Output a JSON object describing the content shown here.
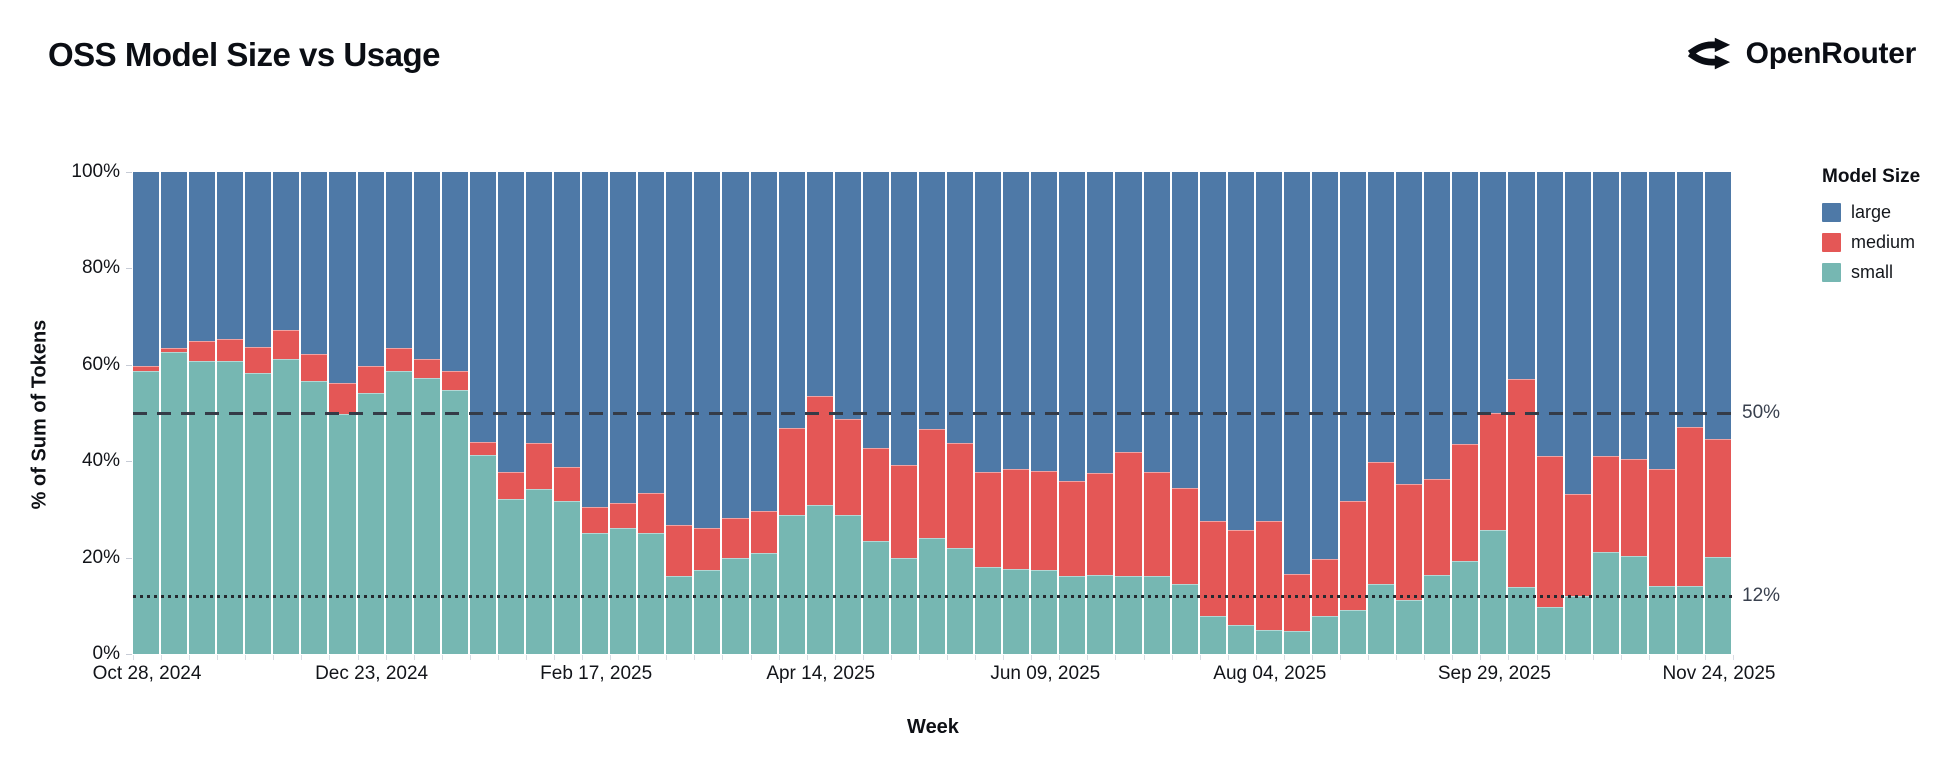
{
  "header": {
    "title": "OSS Model Size vs Usage",
    "brand": "OpenRouter"
  },
  "axes": {
    "y_title": "% of Sum of Tokens",
    "x_title": "Week",
    "y_ticks": [
      "100%",
      "80%",
      "60%",
      "40%",
      "20%",
      "0%"
    ],
    "x_tick_labels": [
      "Oct 28, 2024",
      "Dec 23, 2024",
      "Feb 17, 2025",
      "Apr 14, 2025",
      "Jun 09, 2025",
      "Aug 04, 2025",
      "Sep 29, 2025",
      "Nov 24, 2025"
    ],
    "x_tick_indices": [
      0,
      8,
      16,
      24,
      32,
      40,
      48,
      56
    ]
  },
  "legend": {
    "title": "Model Size",
    "items": [
      {
        "label": "large",
        "color": "#4e79a7"
      },
      {
        "label": "medium",
        "color": "#e45756"
      },
      {
        "label": "small",
        "color": "#76b7b2"
      }
    ]
  },
  "reference_lines": [
    {
      "value": 50,
      "label": "50%",
      "style": "dashed"
    },
    {
      "value": 12,
      "label": "12%",
      "style": "dotted"
    }
  ],
  "chart_data": {
    "type": "bar",
    "stacked": true,
    "normalized": true,
    "title": "OSS Model Size vs Usage",
    "xlabel": "Week",
    "ylabel": "% of Sum of Tokens",
    "ylim": [
      0,
      100
    ],
    "legend_position": "right",
    "grid": false,
    "x": [
      "Oct 28, 2024",
      "Nov 04, 2024",
      "Nov 11, 2024",
      "Nov 18, 2024",
      "Nov 25, 2024",
      "Dec 02, 2024",
      "Dec 09, 2024",
      "Dec 16, 2024",
      "Dec 23, 2024",
      "Dec 30, 2024",
      "Jan 06, 2025",
      "Jan 13, 2025",
      "Jan 20, 2025",
      "Jan 27, 2025",
      "Feb 03, 2025",
      "Feb 10, 2025",
      "Feb 17, 2025",
      "Feb 24, 2025",
      "Mar 03, 2025",
      "Mar 10, 2025",
      "Mar 17, 2025",
      "Mar 24, 2025",
      "Mar 31, 2025",
      "Apr 07, 2025",
      "Apr 14, 2025",
      "Apr 21, 2025",
      "Apr 28, 2025",
      "May 05, 2025",
      "May 12, 2025",
      "May 19, 2025",
      "May 26, 2025",
      "Jun 02, 2025",
      "Jun 09, 2025",
      "Jun 16, 2025",
      "Jun 23, 2025",
      "Jun 30, 2025",
      "Jul 07, 2025",
      "Jul 14, 2025",
      "Jul 21, 2025",
      "Jul 28, 2025",
      "Aug 04, 2025",
      "Aug 11, 2025",
      "Aug 18, 2025",
      "Aug 25, 2025",
      "Sep 01, 2025",
      "Sep 08, 2025",
      "Sep 15, 2025",
      "Sep 22, 2025",
      "Sep 29, 2025",
      "Oct 06, 2025",
      "Oct 13, 2025",
      "Oct 20, 2025",
      "Oct 27, 2025",
      "Nov 03, 2025",
      "Nov 10, 2025",
      "Nov 17, 2025",
      "Nov 24, 2025"
    ],
    "series": [
      {
        "name": "small",
        "color": "#76b7b2",
        "values": [
          58.5,
          62.5,
          60.5,
          60.5,
          58,
          61,
          56.5,
          49.5,
          54,
          58.5,
          57,
          54.5,
          41,
          32,
          34,
          31.5,
          25,
          26,
          25,
          16,
          17.3,
          19.7,
          20.8,
          28.7,
          30.7,
          28.7,
          23.2,
          19.7,
          23.8,
          21.7,
          17.8,
          17.4,
          17.3,
          16,
          16.2,
          16,
          15.9,
          14.3,
          7.6,
          5.8,
          4.8,
          4.6,
          7.6,
          8.9,
          14.3,
          11.1,
          16.2,
          19,
          25.5,
          13.6,
          9.5,
          11.8,
          21,
          20.1,
          13.8,
          13.9,
          20
        ]
      },
      {
        "name": "medium",
        "color": "#e45756",
        "values": [
          1,
          0.7,
          4.3,
          4.7,
          5.5,
          6,
          5.5,
          6.5,
          5.5,
          4.7,
          4,
          4,
          2.7,
          5.5,
          9.5,
          7,
          5.2,
          5.2,
          8.2,
          10.5,
          8.6,
          8.3,
          8.7,
          18,
          22.7,
          19.8,
          19.3,
          19.3,
          22.6,
          21.8,
          19.7,
          20.8,
          20.5,
          19.7,
          21.1,
          25.7,
          21.6,
          20,
          19.8,
          19.7,
          22.5,
          11.8,
          12,
          22.6,
          25.3,
          23.9,
          19.9,
          24.3,
          24.4,
          43.2,
          31.3,
          21.1,
          19.8,
          20.2,
          24.4,
          32.9,
          24.3
        ]
      },
      {
        "name": "large",
        "color": "#4e79a7",
        "values": [
          40.5,
          36.8,
          35.2,
          34.8,
          36.5,
          33,
          38,
          44,
          40.5,
          36.8,
          39,
          41.5,
          56.3,
          62.5,
          56.5,
          61.5,
          69.8,
          68.8,
          66.8,
          73.5,
          74.1,
          72,
          70.5,
          53.3,
          46.6,
          51.5,
          57.5,
          61,
          53.6,
          56.5,
          62.5,
          61.8,
          62.2,
          64.3,
          62.7,
          58.3,
          62.5,
          65.7,
          72.6,
          74.5,
          72.7,
          83.6,
          80.4,
          68.5,
          60.4,
          65,
          63.9,
          56.7,
          50.1,
          43.2,
          59.2,
          67.1,
          59.2,
          59.7,
          61.8,
          53.2,
          55.7
        ]
      }
    ]
  }
}
